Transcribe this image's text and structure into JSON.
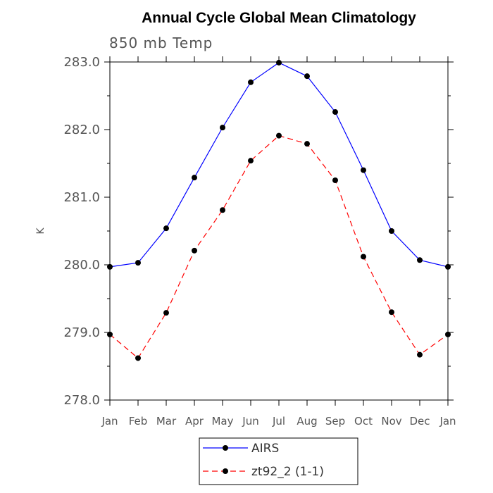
{
  "chart_data": {
    "type": "line",
    "title": "Annual Cycle Global Mean Climatology",
    "subtitle": "850 mb Temp",
    "ylabel": "K",
    "xlabel": "",
    "categories": [
      "Jan",
      "Feb",
      "Mar",
      "Apr",
      "May",
      "Jun",
      "Jul",
      "Aug",
      "Sep",
      "Oct",
      "Nov",
      "Dec",
      "Jan"
    ],
    "ylim": [
      278.0,
      283.0
    ],
    "yticks": [
      "278.0",
      "279.0",
      "280.0",
      "281.0",
      "282.0",
      "283.0"
    ],
    "grid": false,
    "legend_placement": "bottom-center",
    "series": [
      {
        "name": "AIRS",
        "color": "#0000ff",
        "style": "solid",
        "marker": "circle",
        "values": [
          279.97,
          280.03,
          280.54,
          281.29,
          282.03,
          282.7,
          282.99,
          282.79,
          282.26,
          281.4,
          280.5,
          280.07,
          279.97
        ]
      },
      {
        "name": "zt92_2 (1-1)",
        "color": "#ff0000",
        "style": "dashed",
        "marker": "circle",
        "values": [
          278.97,
          278.62,
          279.29,
          280.21,
          280.81,
          281.54,
          281.91,
          281.79,
          281.25,
          280.12,
          279.3,
          278.67,
          278.97
        ]
      }
    ]
  }
}
